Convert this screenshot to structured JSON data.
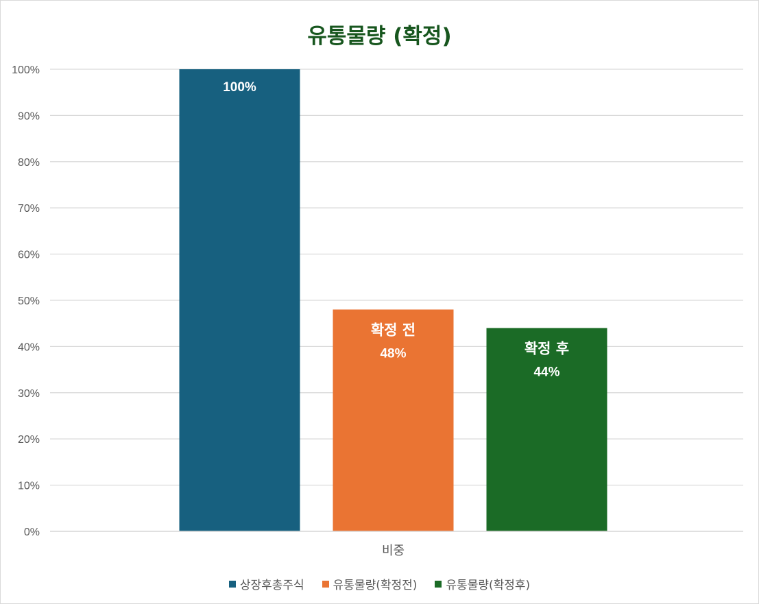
{
  "chart_data": {
    "type": "bar",
    "title": "유통물량 (확정)",
    "categories": [
      "비중"
    ],
    "ylim": [
      0,
      100
    ],
    "ytick_step": 10,
    "ytick_suffix": "%",
    "grid": true,
    "legend_position": "bottom",
    "series": [
      {
        "name": "상장후총주식",
        "values": [
          100
        ],
        "color": "#17607f",
        "data_label": "",
        "value_label": "100%"
      },
      {
        "name": "유통물량(확정전)",
        "values": [
          48
        ],
        "color": "#ea7433",
        "data_label": "확정 전",
        "value_label": "48%"
      },
      {
        "name": "유통물량(확정후)",
        "values": [
          44
        ],
        "color": "#1b6b26",
        "data_label": "확정 후",
        "value_label": "44%"
      }
    ]
  }
}
